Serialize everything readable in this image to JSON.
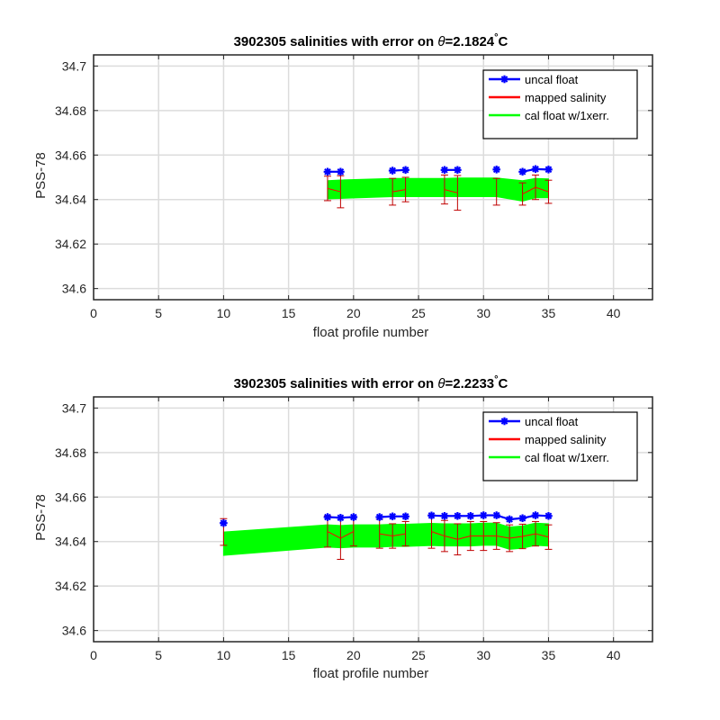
{
  "chart_data": [
    {
      "type": "line",
      "title": {
        "prefix": "3902305 salinities with error on ",
        "theta": "θ",
        "eq": "=2.1824",
        "deg": "°",
        "unit": "C"
      },
      "xlabel": "float profile number",
      "ylabel": "PSS-78",
      "xlim": [
        0,
        43
      ],
      "ylim": [
        34.595,
        34.705
      ],
      "xticks": [
        0,
        5,
        10,
        15,
        20,
        25,
        30,
        35,
        40
      ],
      "yticks": [
        34.6,
        34.62,
        34.64,
        34.66,
        34.68,
        34.7
      ],
      "ytick_labels": [
        "34.6",
        "34.62",
        "34.64",
        "34.66",
        "34.68",
        "34.7"
      ],
      "grid": true,
      "legend": {
        "placement": "top-right",
        "entries": [
          "uncal float",
          "mapped salinity",
          "cal float w/1xerr."
        ]
      },
      "colors": {
        "uncal": "#0000ff",
        "mapped": "#ff0000",
        "mapped_err": "#c00000",
        "cal": "#00ff00"
      },
      "x": [
        18,
        19,
        23,
        24,
        27,
        28,
        31,
        33,
        34,
        35
      ],
      "series": [
        {
          "name": "uncal float",
          "values": [
            34.6525,
            34.6525,
            34.653,
            34.6533,
            34.6533,
            34.6533,
            34.6535,
            34.6525,
            34.6537,
            34.6535
          ]
        },
        {
          "name": "mapped salinity",
          "values": [
            34.645,
            34.6435,
            34.6435,
            34.6445,
            34.6445,
            34.643,
            34.6435,
            34.6425,
            34.6455,
            34.6435
          ],
          "error": [
            0.0055,
            0.0072,
            0.006,
            0.0055,
            0.0065,
            0.0078,
            0.006,
            0.005,
            0.0055,
            0.0052
          ]
        },
        {
          "name": "cal float w/1xerr.",
          "upper": [
            34.6485,
            34.6488,
            34.6495,
            34.6495,
            34.6495,
            34.6497,
            34.6497,
            34.6485,
            34.6495,
            34.6493
          ],
          "lower": [
            34.6403,
            34.6405,
            34.6413,
            34.6413,
            34.6413,
            34.6413,
            34.6413,
            34.6393,
            34.6408,
            34.6408
          ]
        }
      ]
    },
    {
      "type": "line",
      "title": {
        "prefix": "3902305 salinities with error on ",
        "theta": "θ",
        "eq": "=2.2233",
        "deg": "°",
        "unit": "C"
      },
      "xlabel": "float profile number",
      "ylabel": "PSS-78",
      "xlim": [
        0,
        43
      ],
      "ylim": [
        34.595,
        34.705
      ],
      "xticks": [
        0,
        5,
        10,
        15,
        20,
        25,
        30,
        35,
        40
      ],
      "yticks": [
        34.6,
        34.62,
        34.64,
        34.66,
        34.68,
        34.7
      ],
      "ytick_labels": [
        "34.6",
        "34.62",
        "34.64",
        "34.66",
        "34.68",
        "34.7"
      ],
      "grid": true,
      "legend": {
        "placement": "top-right",
        "entries": [
          "uncal float",
          "mapped salinity",
          "cal float w/1xerr."
        ]
      },
      "colors": {
        "uncal": "#0000ff",
        "mapped": "#ff0000",
        "mapped_err": "#c00000",
        "cal": "#00ff00"
      },
      "x": [
        10,
        18,
        19,
        20,
        22,
        23,
        24,
        26,
        27,
        28,
        29,
        30,
        31,
        32,
        33,
        34,
        35
      ],
      "series": [
        {
          "name": "uncal float",
          "values": [
            34.6483,
            34.651,
            34.6507,
            34.651,
            34.651,
            34.6513,
            34.6513,
            34.6517,
            34.6515,
            34.6515,
            34.6515,
            34.6518,
            34.6518,
            34.65,
            34.6505,
            34.6518,
            34.6515
          ]
        },
        {
          "name": "mapped salinity",
          "values": [
            34.6443,
            34.6445,
            34.6415,
            34.6445,
            34.6435,
            34.6425,
            34.6435,
            34.6445,
            34.6425,
            34.641,
            34.6425,
            34.6425,
            34.6425,
            34.6415,
            34.6423,
            34.6435,
            34.642
          ],
          "error": [
            0.006,
            0.007,
            0.0095,
            0.0065,
            0.0065,
            0.0055,
            0.0055,
            0.0075,
            0.007,
            0.007,
            0.0065,
            0.0065,
            0.006,
            0.006,
            0.0055,
            0.0055,
            0.0055
          ]
        },
        {
          "name": "cal float w/1xerr.",
          "upper": [
            34.6443,
            34.6475,
            34.6472,
            34.6475,
            34.6475,
            34.6478,
            34.6478,
            34.6482,
            34.648,
            34.648,
            34.648,
            34.6483,
            34.6483,
            34.6465,
            34.647,
            34.6483,
            34.648
          ],
          "lower": [
            34.6338,
            34.6375,
            34.6372,
            34.6375,
            34.6375,
            34.6378,
            34.6378,
            34.6382,
            34.638,
            34.638,
            34.638,
            34.6383,
            34.6383,
            34.6365,
            34.637,
            34.6383,
            34.638
          ]
        }
      ]
    }
  ]
}
